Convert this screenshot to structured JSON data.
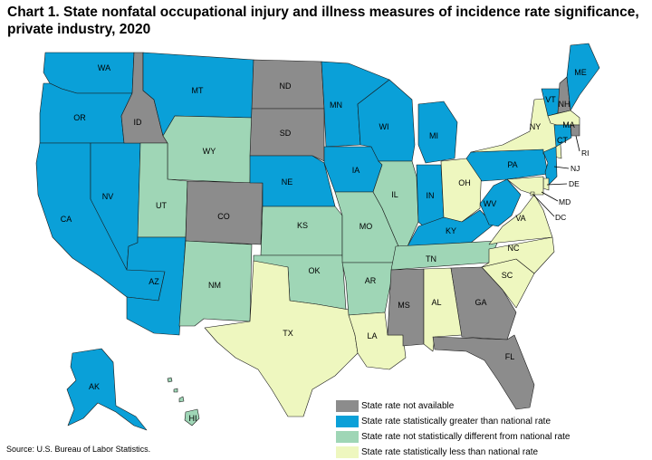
{
  "title": "Chart 1. State nonfatal occupational injury and illness measures of incidence rate significance, private industry, 2020",
  "source": "Source: U.S. Bureau of Labor Statistics.",
  "colors": {
    "not_available": "#8c8c8c",
    "greater": "#0aa0d8",
    "not_different": "#9fd6b6",
    "less": "#eef7bf"
  },
  "legend": [
    {
      "key": "not_available",
      "label": "State rate not available"
    },
    {
      "key": "greater",
      "label": "State rate statistically greater than national rate"
    },
    {
      "key": "not_different",
      "label": "State rate not statistically different from national rate"
    },
    {
      "key": "less",
      "label": "State rate statistically less than national rate"
    }
  ],
  "states": [
    {
      "code": "WA",
      "category": "greater"
    },
    {
      "code": "OR",
      "category": "greater"
    },
    {
      "code": "CA",
      "category": "greater"
    },
    {
      "code": "NV",
      "category": "greater"
    },
    {
      "code": "ID",
      "category": "not_available"
    },
    {
      "code": "MT",
      "category": "greater"
    },
    {
      "code": "WY",
      "category": "not_different"
    },
    {
      "code": "UT",
      "category": "not_different"
    },
    {
      "code": "AZ",
      "category": "greater"
    },
    {
      "code": "CO",
      "category": "not_available"
    },
    {
      "code": "NM",
      "category": "not_different"
    },
    {
      "code": "ND",
      "category": "not_available"
    },
    {
      "code": "SD",
      "category": "not_available"
    },
    {
      "code": "NE",
      "category": "greater"
    },
    {
      "code": "KS",
      "category": "not_different"
    },
    {
      "code": "OK",
      "category": "not_different"
    },
    {
      "code": "TX",
      "category": "less"
    },
    {
      "code": "MN",
      "category": "greater"
    },
    {
      "code": "IA",
      "category": "greater"
    },
    {
      "code": "MO",
      "category": "not_different"
    },
    {
      "code": "AR",
      "category": "not_different"
    },
    {
      "code": "LA",
      "category": "less"
    },
    {
      "code": "WI",
      "category": "greater"
    },
    {
      "code": "IL",
      "category": "not_different"
    },
    {
      "code": "MI",
      "category": "greater"
    },
    {
      "code": "IN",
      "category": "greater"
    },
    {
      "code": "OH",
      "category": "less"
    },
    {
      "code": "KY",
      "category": "greater"
    },
    {
      "code": "TN",
      "category": "not_different"
    },
    {
      "code": "MS",
      "category": "not_available"
    },
    {
      "code": "AL",
      "category": "less"
    },
    {
      "code": "GA",
      "category": "not_available"
    },
    {
      "code": "FL",
      "category": "not_available"
    },
    {
      "code": "SC",
      "category": "less"
    },
    {
      "code": "NC",
      "category": "less"
    },
    {
      "code": "VA",
      "category": "less"
    },
    {
      "code": "WV",
      "category": "greater"
    },
    {
      "code": "PA",
      "category": "greater"
    },
    {
      "code": "NY",
      "category": "less"
    },
    {
      "code": "VT",
      "category": "greater"
    },
    {
      "code": "NH",
      "category": "not_available"
    },
    {
      "code": "ME",
      "category": "greater"
    },
    {
      "code": "MA",
      "category": "less"
    },
    {
      "code": "RI",
      "category": "not_available"
    },
    {
      "code": "CT",
      "category": "greater"
    },
    {
      "code": "NJ",
      "category": "greater"
    },
    {
      "code": "DE",
      "category": "less"
    },
    {
      "code": "MD",
      "category": "less"
    },
    {
      "code": "DC",
      "category": "less"
    },
    {
      "code": "AK",
      "category": "greater"
    },
    {
      "code": "HI",
      "category": "not_different"
    }
  ]
}
